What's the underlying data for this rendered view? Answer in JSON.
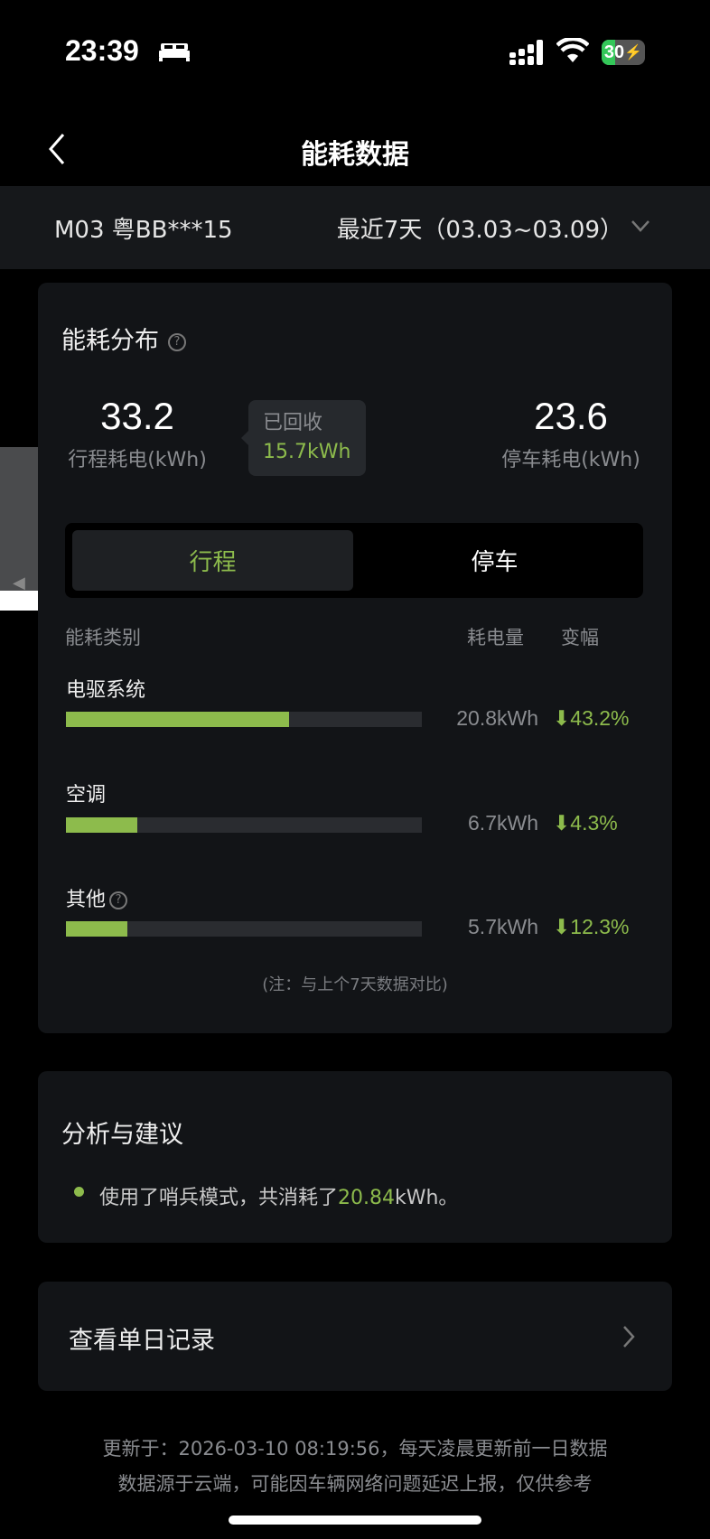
{
  "status_bar": {
    "time": "23:39",
    "battery": "30",
    "icons": [
      "bed-icon",
      "cellular-signal-icon",
      "wifi-icon",
      "battery-charging-icon"
    ]
  },
  "header": {
    "title": "能耗数据",
    "back_icon": "chevron-left-icon"
  },
  "vehicle_bar": {
    "vehicle": "M03 粤BB***15",
    "range": "最近7天（03.03~03.09）",
    "dropdown_icon": "chevron-down-icon"
  },
  "distribution": {
    "title": "能耗分布",
    "help_icon": "question-circle-icon",
    "trip": {
      "value": "33.2",
      "label": "行程耗电(kWh)"
    },
    "recovered": {
      "label": "已回收",
      "value": "15.7kWh"
    },
    "parking": {
      "value": "23.6",
      "label": "停车耗电(kWh)"
    },
    "tabs": [
      {
        "label": "行程",
        "active": true
      },
      {
        "label": "停车",
        "active": false
      }
    ],
    "columns": {
      "category": "能耗类别",
      "amount": "耗电量",
      "change": "变幅"
    },
    "items": [
      {
        "label": "电驱系统",
        "amount": "20.8kWh",
        "change": "43.2%",
        "direction": "down",
        "fill_fraction": 0.627,
        "help": false
      },
      {
        "label": "空调",
        "amount": "6.7kWh",
        "change": "4.3%",
        "direction": "down",
        "fill_fraction": 0.2,
        "help": false
      },
      {
        "label": "其他",
        "amount": "5.7kWh",
        "change": "12.3%",
        "direction": "down",
        "fill_fraction": 0.173,
        "help": true
      }
    ],
    "note": "(注：与上个7天数据对比)"
  },
  "analysis": {
    "title": "分析与建议",
    "text_before": "使用了哨兵模式，共消耗了",
    "highlight": "20.84",
    "text_after": "kWh。"
  },
  "daily": {
    "label": "查看单日记录",
    "icon": "chevron-right-icon"
  },
  "footer": {
    "line1": "更新于：2026-03-10 08:19:56，每天凌晨更新前一日数据",
    "line2": "数据源于云端，可能因车辆网络问题延迟上报，仅供参考"
  },
  "colors": {
    "accent": "#8dbb4c",
    "card": "#121417",
    "background": "#000000"
  }
}
